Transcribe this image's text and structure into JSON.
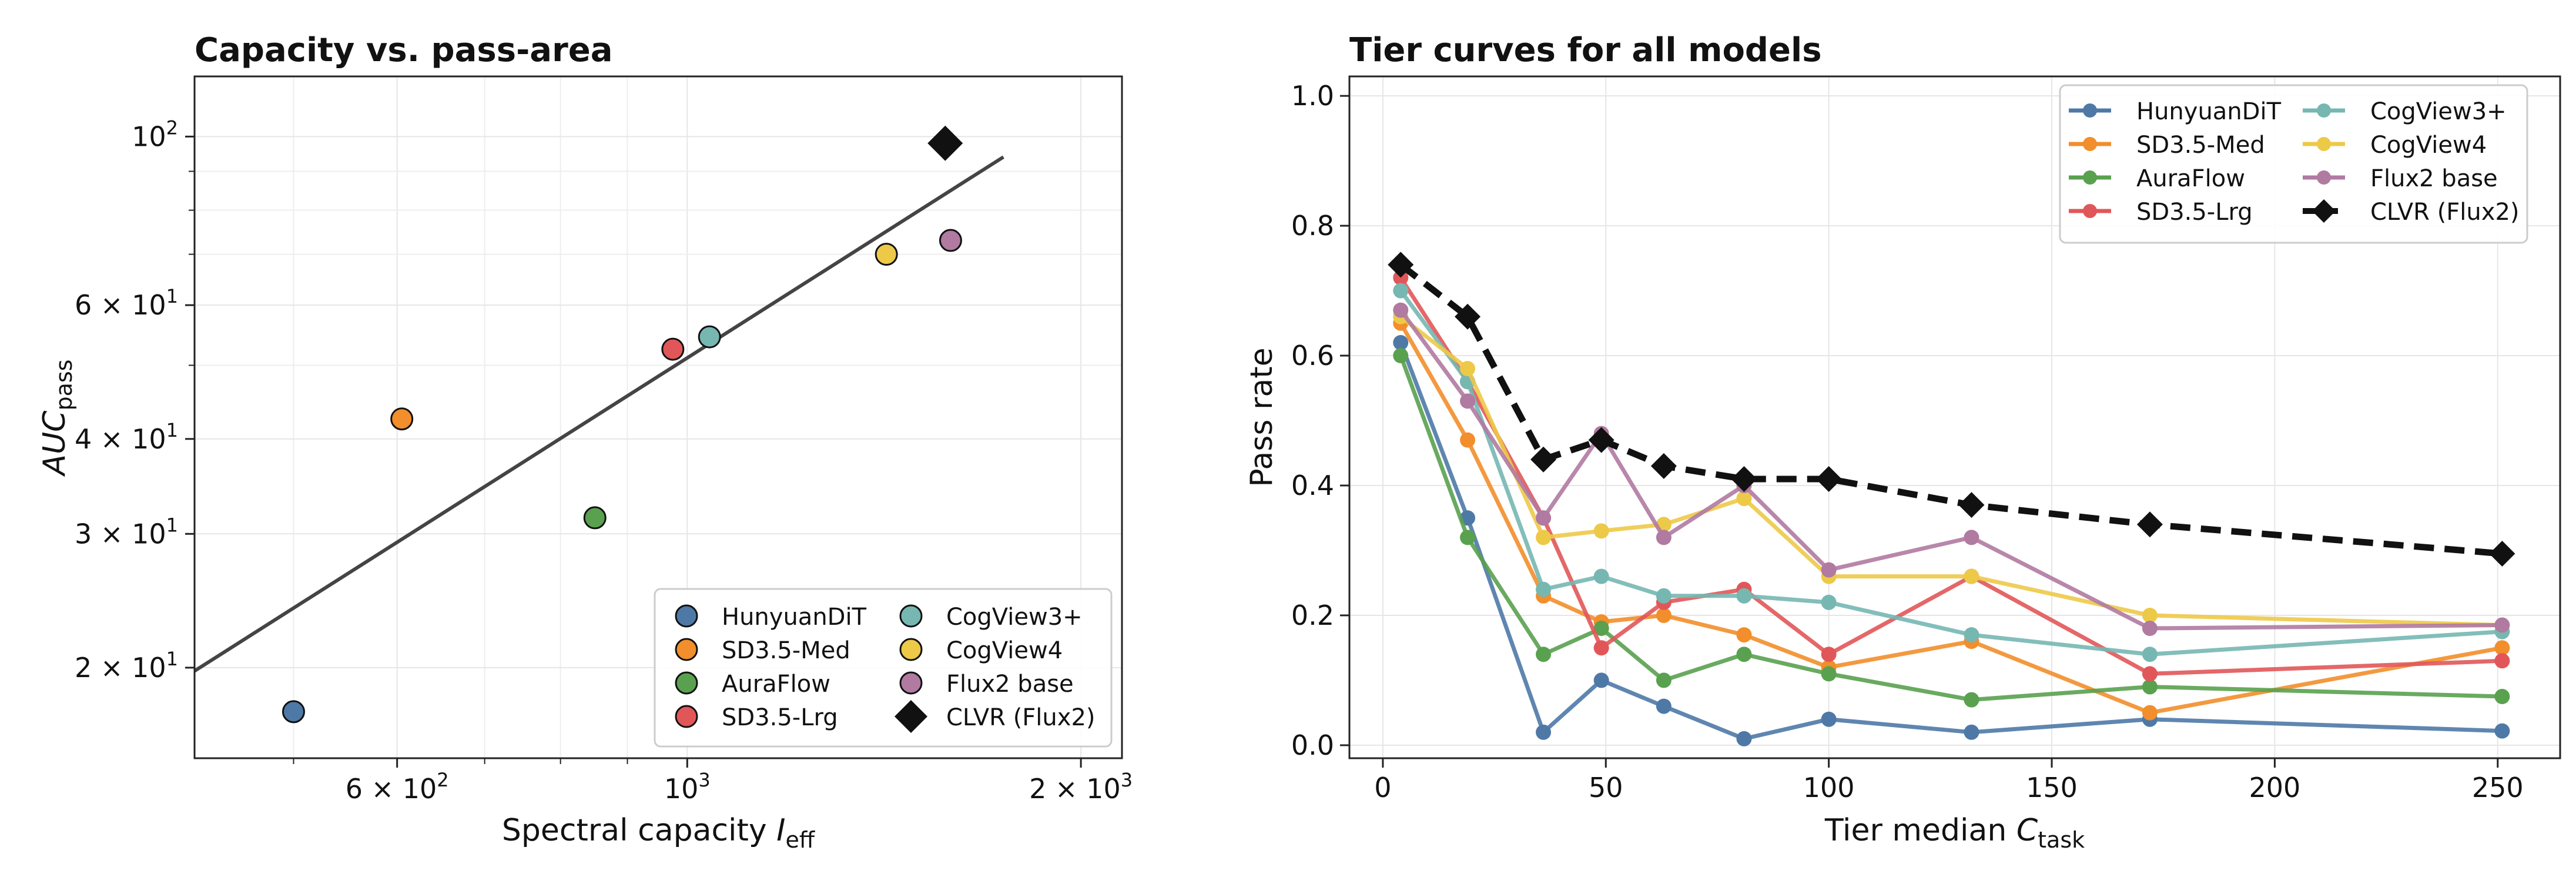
{
  "chart_data": [
    {
      "type": "scatter",
      "title": "Capacity vs. pass-area",
      "xlabel": {
        "main": "Spectral capacity ",
        "italic": "I",
        "sub": "eff"
      },
      "ylabel": {
        "italic": "AUC",
        "sub": "pass"
      },
      "xscale": "log",
      "yscale": "log",
      "xlim": [
        420,
        2150
      ],
      "ylim": [
        15.2,
        120
      ],
      "grid": true,
      "legend_position": "lower-right",
      "x_ticks": [
        {
          "value": 600,
          "mant": "6 × 10",
          "exp": "2"
        },
        {
          "value": 1000,
          "mant": "10",
          "exp": "3"
        },
        {
          "value": 2000,
          "mant": "2 × 10",
          "exp": "3"
        }
      ],
      "y_ticks": [
        {
          "value": 20,
          "mant": "2 × 10",
          "exp": "1"
        },
        {
          "value": 30,
          "mant": "3 × 10",
          "exp": "1"
        },
        {
          "value": 40,
          "mant": "4 × 10",
          "exp": "1"
        },
        {
          "value": 60,
          "mant": "6 × 10",
          "exp": "1"
        },
        {
          "value": 100,
          "mant": "10",
          "exp": "2"
        }
      ],
      "points": [
        {
          "name": "HunyuanDiT",
          "x": 500,
          "y": 17.5,
          "color": "#4e79a7",
          "marker": "circle"
        },
        {
          "name": "SD3.5-Med",
          "x": 605,
          "y": 42.5,
          "color": "#f28e2b",
          "marker": "circle"
        },
        {
          "name": "AuraFlow",
          "x": 850,
          "y": 31.5,
          "color": "#59a14f",
          "marker": "circle"
        },
        {
          "name": "SD3.5-Lrg",
          "x": 975,
          "y": 52.5,
          "color": "#e15759",
          "marker": "circle"
        },
        {
          "name": "CogView3+",
          "x": 1040,
          "y": 54.5,
          "color": "#76b7b2",
          "marker": "circle"
        },
        {
          "name": "CogView4",
          "x": 1420,
          "y": 70,
          "color": "#edc948",
          "marker": "circle"
        },
        {
          "name": "Flux2 base",
          "x": 1590,
          "y": 73,
          "color": "#b07aa1",
          "marker": "circle"
        },
        {
          "name": "CLVR (Flux2)",
          "x": 1575,
          "y": 98,
          "color": "#111111",
          "marker": "diamond"
        }
      ],
      "fit_line": {
        "x": [
          420,
          1745
        ],
        "y": [
          19.8,
          94
        ],
        "color": "#444444"
      }
    },
    {
      "type": "line",
      "title": "Tier curves for all models",
      "xlabel": {
        "main": "Tier median ",
        "italic": "C",
        "sub": "task"
      },
      "ylabel": {
        "main": "Pass rate"
      },
      "xlim": [
        -7.5,
        264
      ],
      "ylim": [
        -0.02,
        1.03
      ],
      "grid": true,
      "legend_position": "upper-right",
      "x_ticks": [
        {
          "value": 0,
          "label": "0"
        },
        {
          "value": 50,
          "label": "50"
        },
        {
          "value": 100,
          "label": "100"
        },
        {
          "value": 150,
          "label": "150"
        },
        {
          "value": 200,
          "label": "200"
        },
        {
          "value": 250,
          "label": "250"
        }
      ],
      "y_ticks": [
        {
          "value": 0,
          "label": "0.0"
        },
        {
          "value": 0.2,
          "label": "0.2"
        },
        {
          "value": 0.4,
          "label": "0.4"
        },
        {
          "value": 0.6,
          "label": "0.6"
        },
        {
          "value": 0.8,
          "label": "0.8"
        },
        {
          "value": 1.0,
          "label": "1.0"
        }
      ],
      "x": [
        4,
        19,
        36,
        49,
        63,
        81,
        100,
        132,
        172,
        251
      ],
      "series": [
        {
          "name": "HunyuanDiT",
          "color": "#4e79a7",
          "marker": "circle",
          "dashed": false,
          "values": [
            0.62,
            0.35,
            0.02,
            0.1,
            0.06,
            0.01,
            0.04,
            0.02,
            0.04,
            0.022
          ]
        },
        {
          "name": "SD3.5-Med",
          "color": "#f28e2b",
          "marker": "circle",
          "dashed": false,
          "values": [
            0.65,
            0.47,
            0.23,
            0.19,
            0.2,
            0.17,
            0.12,
            0.16,
            0.05,
            0.15
          ]
        },
        {
          "name": "AuraFlow",
          "color": "#59a14f",
          "marker": "circle",
          "dashed": false,
          "values": [
            0.6,
            0.32,
            0.14,
            0.18,
            0.1,
            0.14,
            0.11,
            0.07,
            0.09,
            0.075
          ]
        },
        {
          "name": "SD3.5-Lrg",
          "color": "#e15759",
          "marker": "circle",
          "dashed": false,
          "values": [
            0.72,
            0.56,
            0.35,
            0.15,
            0.22,
            0.24,
            0.14,
            0.26,
            0.11,
            0.13
          ]
        },
        {
          "name": "CogView3+",
          "color": "#76b7b2",
          "marker": "circle",
          "dashed": false,
          "values": [
            0.7,
            0.56,
            0.24,
            0.26,
            0.23,
            0.23,
            0.22,
            0.17,
            0.14,
            0.175
          ]
        },
        {
          "name": "CogView4",
          "color": "#edc948",
          "marker": "circle",
          "dashed": false,
          "values": [
            0.66,
            0.58,
            0.32,
            0.33,
            0.34,
            0.38,
            0.26,
            0.26,
            0.2,
            0.185
          ]
        },
        {
          "name": "Flux2 base",
          "color": "#b07aa1",
          "marker": "circle",
          "dashed": false,
          "values": [
            0.67,
            0.53,
            0.35,
            0.48,
            0.32,
            0.4,
            0.27,
            0.32,
            0.18,
            0.185
          ]
        },
        {
          "name": "CLVR (Flux2)",
          "color": "#111111",
          "marker": "diamond",
          "dashed": true,
          "values": [
            0.74,
            0.66,
            0.44,
            0.47,
            0.43,
            0.41,
            0.41,
            0.37,
            0.34,
            0.295
          ]
        }
      ]
    }
  ]
}
